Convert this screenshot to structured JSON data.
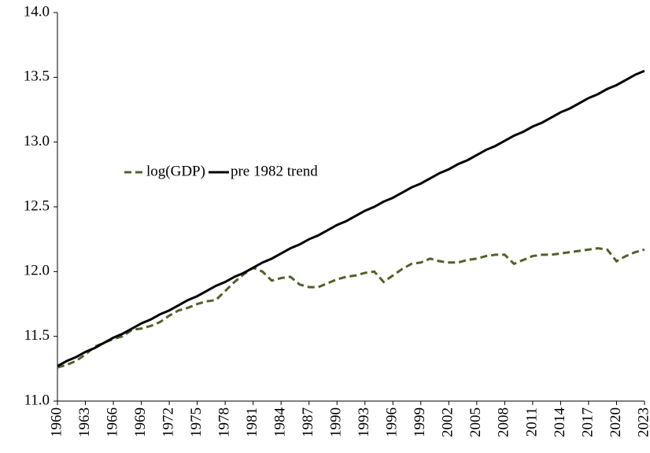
{
  "chart_data": {
    "type": "line",
    "x": [
      1960,
      1961,
      1962,
      1963,
      1964,
      1965,
      1966,
      1967,
      1968,
      1969,
      1970,
      1971,
      1972,
      1973,
      1974,
      1975,
      1976,
      1977,
      1978,
      1979,
      1980,
      1981,
      1982,
      1983,
      1984,
      1985,
      1986,
      1987,
      1988,
      1989,
      1990,
      1991,
      1992,
      1993,
      1994,
      1995,
      1996,
      1997,
      1998,
      1999,
      2000,
      2001,
      2002,
      2003,
      2004,
      2005,
      2006,
      2007,
      2008,
      2009,
      2010,
      2011,
      2012,
      2013,
      2014,
      2015,
      2016,
      2017,
      2018,
      2019,
      2020,
      2021,
      2022,
      2023
    ],
    "series": [
      {
        "name": "log(GDP)",
        "color": "#4f6228",
        "dashed": true,
        "values": [
          11.26,
          11.28,
          11.31,
          11.36,
          11.42,
          11.45,
          11.48,
          11.5,
          11.55,
          11.56,
          11.58,
          11.61,
          11.66,
          11.7,
          11.72,
          11.75,
          11.77,
          11.78,
          11.85,
          11.92,
          11.98,
          12.03,
          12.0,
          11.93,
          11.95,
          11.96,
          11.9,
          11.88,
          11.88,
          11.91,
          11.94,
          11.96,
          11.97,
          11.99,
          12.0,
          11.92,
          11.97,
          12.02,
          12.06,
          12.07,
          12.1,
          12.08,
          12.07,
          12.07,
          12.09,
          12.1,
          12.12,
          12.13,
          12.13,
          12.06,
          12.09,
          12.12,
          12.13,
          12.13,
          12.14,
          12.15,
          12.16,
          12.17,
          12.18,
          12.17,
          12.08,
          12.12,
          12.15,
          12.17
        ]
      },
      {
        "name": "pre 1982 trend",
        "color": "#000000",
        "dashed": false,
        "values": [
          11.27,
          11.31,
          11.34,
          11.38,
          11.41,
          11.45,
          11.49,
          11.52,
          11.56,
          11.6,
          11.63,
          11.67,
          11.7,
          11.74,
          11.78,
          11.81,
          11.85,
          11.89,
          11.92,
          11.96,
          11.99,
          12.03,
          12.07,
          12.1,
          12.14,
          12.18,
          12.21,
          12.25,
          12.28,
          12.32,
          12.36,
          12.39,
          12.43,
          12.47,
          12.5,
          12.54,
          12.57,
          12.61,
          12.65,
          12.68,
          12.72,
          12.76,
          12.79,
          12.83,
          12.86,
          12.9,
          12.94,
          12.97,
          13.01,
          13.05,
          13.08,
          13.12,
          13.15,
          13.19,
          13.23,
          13.26,
          13.3,
          13.34,
          13.37,
          13.41,
          13.44,
          13.48,
          13.52,
          13.55
        ]
      }
    ],
    "xlim": [
      1960,
      2023
    ],
    "xticks": [
      1960,
      1963,
      1966,
      1969,
      1972,
      1975,
      1978,
      1981,
      1984,
      1987,
      1990,
      1993,
      1996,
      1999,
      2002,
      2005,
      2008,
      2011,
      2014,
      2017,
      2020,
      2023
    ],
    "ylim": [
      11,
      14
    ],
    "yticks": [
      {
        "value": 11,
        "label": "11.0"
      },
      11.5,
      {
        "value": 12,
        "label": "12.0"
      },
      12.5,
      {
        "value": 13,
        "label": "13.0"
      },
      13.5,
      {
        "value": 14,
        "label": "14.0"
      }
    ],
    "grid": false
  }
}
